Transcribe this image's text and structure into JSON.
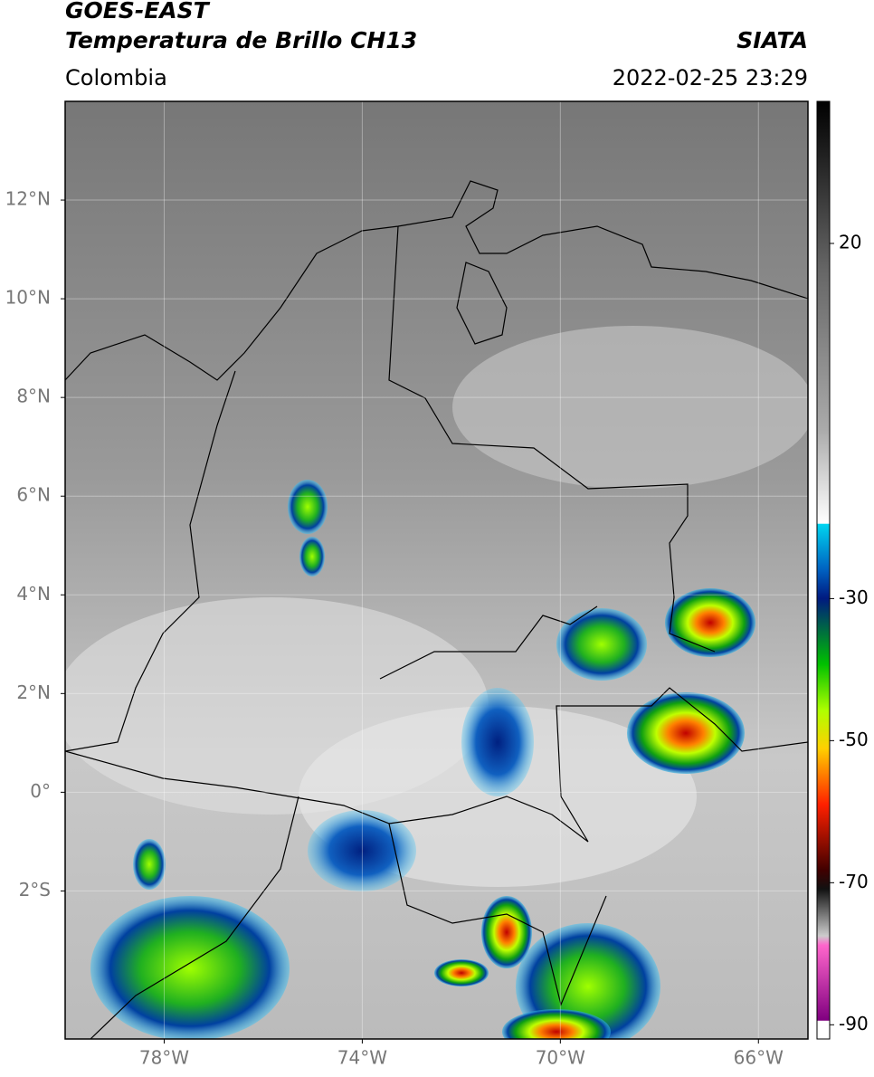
{
  "header": {
    "title": "GOES-EAST",
    "subtitle": "Temperatura de Brillo CH13",
    "region": "Colombia",
    "source": "SIATA",
    "timestamp": "2022-02-25 23:29"
  },
  "map": {
    "lonlim": [
      -80,
      -65
    ],
    "latlim": [
      -5,
      14
    ],
    "lonticks": [
      {
        "value": -78,
        "label": "78°W"
      },
      {
        "value": -74,
        "label": "74°W"
      },
      {
        "value": -70,
        "label": "70°W"
      },
      {
        "value": -66,
        "label": "66°W"
      }
    ],
    "latticks": [
      {
        "value": 12,
        "label": "12°N"
      },
      {
        "value": 10,
        "label": "10°N"
      },
      {
        "value": 8,
        "label": "8°N"
      },
      {
        "value": 6,
        "label": "6°N"
      },
      {
        "value": 4,
        "label": "4°N"
      },
      {
        "value": 2,
        "label": "2°N"
      },
      {
        "value": 0,
        "label": "0°"
      },
      {
        "value": -2,
        "label": "2°S"
      }
    ]
  },
  "colorbar": {
    "lim": [
      -92,
      40
    ],
    "ticks": [
      20,
      -30,
      -50,
      -70,
      -90
    ]
  }
}
